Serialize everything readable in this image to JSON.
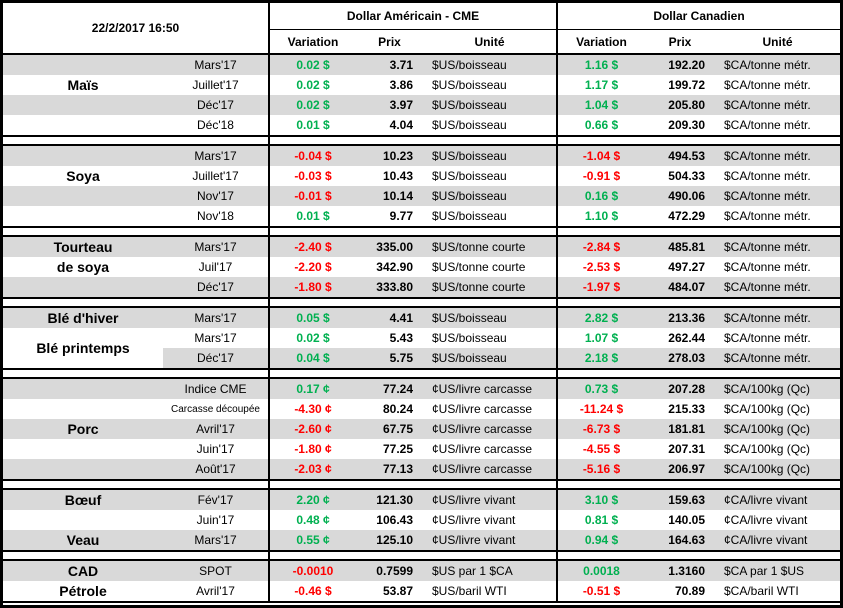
{
  "header": {
    "timestamp": "22/2/2017 16:50",
    "us_section_title": "Dollar Américain - CME",
    "ca_section_title": "Dollar Canadien",
    "columns": {
      "variation": "Variation",
      "prix": "Prix",
      "unite": "Unité"
    }
  },
  "colors": {
    "positive": "#00B050",
    "negative": "#FF0000",
    "row_stripe": "#D9D9D9",
    "border": "#000000"
  },
  "blocks": [
    {
      "rows": [
        {
          "contract": "Mars'17",
          "var_us": "0.02 $",
          "prix_us": "3.71",
          "unit_us": "$US/boisseau",
          "var_ca": "1.16 $",
          "prix_ca": "192.20",
          "unit_ca": "$CA/tonne métr."
        },
        {
          "category": "Maïs",
          "contract": "Juillet'17",
          "var_us": "0.02 $",
          "prix_us": "3.86",
          "unit_us": "$US/boisseau",
          "var_ca": "1.17 $",
          "prix_ca": "199.72",
          "unit_ca": "$CA/tonne métr."
        },
        {
          "contract": "Déc'17",
          "var_us": "0.02 $",
          "prix_us": "3.97",
          "unit_us": "$US/boisseau",
          "var_ca": "1.04 $",
          "prix_ca": "205.80",
          "unit_ca": "$CA/tonne métr."
        },
        {
          "contract": "Déc'18",
          "var_us": "0.01 $",
          "prix_us": "4.04",
          "unit_us": "$US/boisseau",
          "var_ca": "0.66 $",
          "prix_ca": "209.30",
          "unit_ca": "$CA/tonne métr."
        }
      ]
    },
    {
      "rows": [
        {
          "contract": "Mars'17",
          "var_us": "-0.04 $",
          "prix_us": "10.23",
          "unit_us": "$US/boisseau",
          "var_ca": "-1.04 $",
          "prix_ca": "494.53",
          "unit_ca": "$CA/tonne métr."
        },
        {
          "category": "Soya",
          "contract": "Juillet'17",
          "var_us": "-0.03 $",
          "prix_us": "10.43",
          "unit_us": "$US/boisseau",
          "var_ca": "-0.91 $",
          "prix_ca": "504.33",
          "unit_ca": "$CA/tonne métr."
        },
        {
          "contract": "Nov'17",
          "var_us": "-0.01 $",
          "prix_us": "10.14",
          "unit_us": "$US/boisseau",
          "var_ca": "0.16 $",
          "prix_ca": "490.06",
          "unit_ca": "$CA/tonne métr."
        },
        {
          "contract": "Nov'18",
          "var_us": "0.01 $",
          "prix_us": "9.77",
          "unit_us": "$US/boisseau",
          "var_ca": "1.10 $",
          "prix_ca": "472.29",
          "unit_ca": "$CA/tonne métr."
        }
      ]
    },
    {
      "rows": [
        {
          "category": "Tourteau",
          "contract": "Mars'17",
          "var_us": "-2.40 $",
          "prix_us": "335.00",
          "unit_us": "$US/tonne courte",
          "var_ca": "-2.84 $",
          "prix_ca": "485.81",
          "unit_ca": "$CA/tonne métr."
        },
        {
          "category": "de soya",
          "contract": "Juil'17",
          "var_us": "-2.20 $",
          "prix_us": "342.90",
          "unit_us": "$US/tonne courte",
          "var_ca": "-2.53 $",
          "prix_ca": "497.27",
          "unit_ca": "$CA/tonne métr."
        },
        {
          "contract": "Déc'17",
          "var_us": "-1.80 $",
          "prix_us": "333.80",
          "unit_us": "$US/tonne courte",
          "var_ca": "-1.97 $",
          "prix_ca": "484.07",
          "unit_ca": "$CA/tonne métr."
        }
      ]
    },
    {
      "merged_category": {
        "text": "Blé printemps",
        "start": 1,
        "span": 2
      },
      "rows": [
        {
          "category": "Blé d'hiver",
          "contract": "Mars'17",
          "var_us": "0.05 $",
          "prix_us": "4.41",
          "unit_us": "$US/boisseau",
          "var_ca": "2.82 $",
          "prix_ca": "213.36",
          "unit_ca": "$CA/tonne métr."
        },
        {
          "contract": "Mars'17",
          "var_us": "0.02 $",
          "prix_us": "5.43",
          "unit_us": "$US/boisseau",
          "var_ca": "1.07 $",
          "prix_ca": "262.44",
          "unit_ca": "$CA/tonne métr."
        },
        {
          "contract": "Déc'17",
          "var_us": "0.04 $",
          "prix_us": "5.75",
          "unit_us": "$US/boisseau",
          "var_ca": "2.18 $",
          "prix_ca": "278.03",
          "unit_ca": "$CA/tonne métr."
        }
      ]
    },
    {
      "rows": [
        {
          "contract": "Indice CME",
          "var_us": "0.17 ¢",
          "prix_us": "77.24",
          "unit_us": "¢US/livre carcasse",
          "var_ca": "0.73 $",
          "prix_ca": "207.28",
          "unit_ca": "$CA/100kg (Qc)"
        },
        {
          "contract": "Carcasse découpée",
          "small_contract": true,
          "var_us": "-4.30 ¢",
          "prix_us": "80.24",
          "unit_us": "¢US/livre carcasse",
          "var_ca": "-11.24 $",
          "prix_ca": "215.33",
          "unit_ca": "$CA/100kg (Qc)"
        },
        {
          "category": "Porc",
          "contract": "Avril'17",
          "var_us": "-2.60 ¢",
          "prix_us": "67.75",
          "unit_us": "¢US/livre carcasse",
          "var_ca": "-6.73 $",
          "prix_ca": "181.81",
          "unit_ca": "$CA/100kg (Qc)"
        },
        {
          "contract": "Juin'17",
          "var_us": "-1.80 ¢",
          "prix_us": "77.25",
          "unit_us": "¢US/livre carcasse",
          "var_ca": "-4.55 $",
          "prix_ca": "207.31",
          "unit_ca": "$CA/100kg (Qc)"
        },
        {
          "contract": "Août'17",
          "var_us": "-2.03 ¢",
          "prix_us": "77.13",
          "unit_us": "¢US/livre carcasse",
          "var_ca": "-5.16 $",
          "prix_ca": "206.97",
          "unit_ca": "$CA/100kg (Qc)"
        }
      ]
    },
    {
      "rows": [
        {
          "category": "Bœuf",
          "contract": "Fév'17",
          "var_us": "2.20 ¢",
          "prix_us": "121.30",
          "unit_us": "¢US/livre vivant",
          "var_ca": "3.10 $",
          "prix_ca": "159.63",
          "unit_ca": "¢CA/livre vivant"
        },
        {
          "contract": "Juin'17",
          "var_us": "0.48 ¢",
          "prix_us": "106.43",
          "unit_us": "¢US/livre vivant",
          "var_ca": "0.81 $",
          "prix_ca": "140.05",
          "unit_ca": "¢CA/livre vivant"
        },
        {
          "category": "Veau",
          "contract": "Mars'17",
          "var_us": "0.55 ¢",
          "prix_us": "125.10",
          "unit_us": "¢US/livre vivant",
          "var_ca": "0.94 $",
          "prix_ca": "164.63",
          "unit_ca": "¢CA/livre vivant"
        }
      ]
    },
    {
      "rows": [
        {
          "category": "CAD",
          "contract": "SPOT",
          "var_us": "-0.0010",
          "prix_us": "0.7599",
          "unit_us": "$US par 1 $CA",
          "var_ca": "0.0018",
          "prix_ca": "1.3160",
          "unit_ca": "$CA par 1 $US"
        },
        {
          "category": "Pétrole",
          "contract": "Avril'17",
          "var_us": "-0.46 $",
          "prix_us": "53.87",
          "unit_us": "$US/baril WTI",
          "var_ca": "-0.51 $",
          "prix_ca": "70.89",
          "unit_ca": "$CA/baril WTI"
        }
      ]
    }
  ]
}
